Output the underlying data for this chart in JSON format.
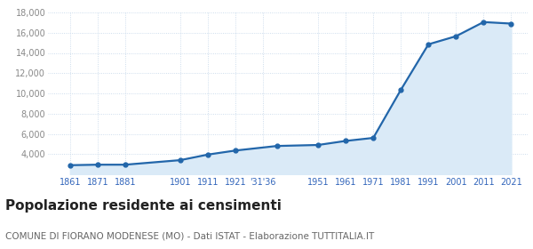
{
  "years_data": [
    1861,
    1871,
    1881,
    1901,
    1911,
    1921,
    1936,
    1951,
    1961,
    1971,
    1981,
    1991,
    2001,
    2011,
    2021
  ],
  "population": [
    2900,
    2950,
    2950,
    3400,
    3950,
    4350,
    4800,
    4900,
    5300,
    5600,
    10350,
    14850,
    15650,
    17050,
    16900
  ],
  "x_tick_positions": [
    1861,
    1871,
    1881,
    1901,
    1911,
    1921,
    1931,
    1951,
    1961,
    1971,
    1981,
    1991,
    2001,
    2011,
    2021
  ],
  "x_tick_labels": [
    "1861",
    "1871",
    "1881",
    "1901",
    "1911",
    "1921",
    "'31'36",
    "1951",
    "1961",
    "1971",
    "1981",
    "1991",
    "2001",
    "2011",
    "2021"
  ],
  "ylim": [
    2000,
    18000
  ],
  "yticks": [
    4000,
    6000,
    8000,
    10000,
    12000,
    14000,
    16000,
    18000
  ],
  "xlim": [
    1853,
    2027
  ],
  "line_color": "#2266aa",
  "fill_color": "#daeaf7",
  "marker_color": "#2266aa",
  "grid_color": "#c0d4e8",
  "bg_color": "#ffffff",
  "title": "Popolazione residente ai censimenti",
  "subtitle": "COMUNE DI FIORANO MODENESE (MO) - Dati ISTAT - Elaborazione TUTTITALIA.IT",
  "title_fontsize": 11,
  "subtitle_fontsize": 7.5,
  "xlabel_color": "#3366bb",
  "ylabel_color": "#888888"
}
